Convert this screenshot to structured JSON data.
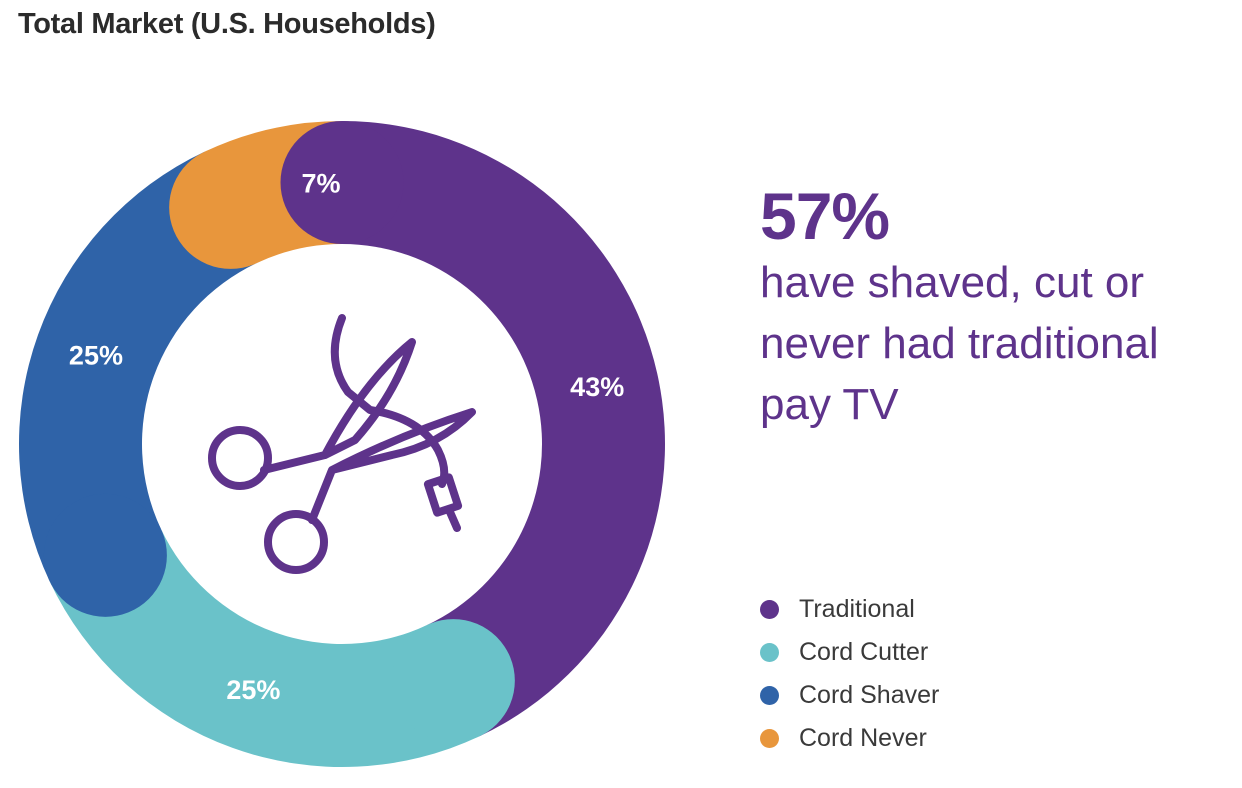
{
  "header": {
    "title": "Total Market (U.S. Households)"
  },
  "callout": {
    "percent": "57%",
    "text": "have shaved, cut or never had traditional pay TV"
  },
  "center_icon": "scissors-cutting-cord-icon",
  "chart_data": {
    "type": "pie",
    "variant": "donut",
    "categories": [
      "Traditional",
      "Cord Cutter",
      "Cord Shaver",
      "Cord Never"
    ],
    "values": [
      43,
      25,
      25,
      7
    ],
    "labels": [
      "43%",
      "25%",
      "25%",
      "7%"
    ],
    "colors": [
      "#5e338b",
      "#6ac2c9",
      "#2f63a8",
      "#e8963c"
    ],
    "legend_position": "bottom-right"
  }
}
